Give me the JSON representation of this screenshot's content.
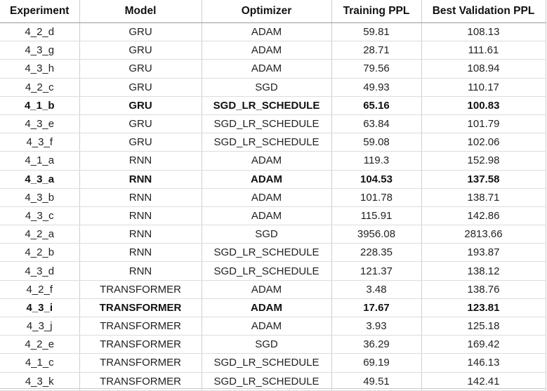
{
  "table": {
    "headers": [
      "Experiment",
      "Model",
      "Optimizer",
      "Training PPL",
      "Best Validation PPL"
    ],
    "rows": [
      {
        "cells": [
          "4_2_d",
          "GRU",
          "ADAM",
          "59.81",
          "108.13"
        ],
        "bold": false,
        "group_start": false
      },
      {
        "cells": [
          "4_3_g",
          "GRU",
          "ADAM",
          "28.71",
          "111.61"
        ],
        "bold": false,
        "group_start": false
      },
      {
        "cells": [
          "4_3_h",
          "GRU",
          "ADAM",
          "79.56",
          "108.94"
        ],
        "bold": false,
        "group_start": false
      },
      {
        "cells": [
          "4_2_c",
          "GRU",
          "SGD",
          "49.93",
          "110.17"
        ],
        "bold": false,
        "group_start": false
      },
      {
        "cells": [
          "4_1_b",
          "GRU",
          "SGD_LR_SCHEDULE",
          "65.16",
          "100.83"
        ],
        "bold": true,
        "group_start": false
      },
      {
        "cells": [
          "4_3_e",
          "GRU",
          "SGD_LR_SCHEDULE",
          "63.84",
          "101.79"
        ],
        "bold": false,
        "group_start": false
      },
      {
        "cells": [
          "4_3_f",
          "GRU",
          "SGD_LR_SCHEDULE",
          "59.08",
          "102.06"
        ],
        "bold": false,
        "group_start": false
      },
      {
        "cells": [
          "4_1_a",
          "RNN",
          "ADAM",
          "119.3",
          "152.98"
        ],
        "bold": false,
        "group_start": true
      },
      {
        "cells": [
          "4_3_a",
          "RNN",
          "ADAM",
          "104.53",
          "137.58"
        ],
        "bold": true,
        "group_start": false
      },
      {
        "cells": [
          "4_3_b",
          "RNN",
          "ADAM",
          "101.78",
          "138.71"
        ],
        "bold": false,
        "group_start": false
      },
      {
        "cells": [
          "4_3_c",
          "RNN",
          "ADAM",
          "115.91",
          "142.86"
        ],
        "bold": false,
        "group_start": false
      },
      {
        "cells": [
          "4_2_a",
          "RNN",
          "SGD",
          "3956.08",
          "2813.66"
        ],
        "bold": false,
        "group_start": false
      },
      {
        "cells": [
          "4_2_b",
          "RNN",
          "SGD_LR_SCHEDULE",
          "228.35",
          "193.87"
        ],
        "bold": false,
        "group_start": false
      },
      {
        "cells": [
          "4_3_d",
          "RNN",
          "SGD_LR_SCHEDULE",
          "121.37",
          "138.12"
        ],
        "bold": false,
        "group_start": false
      },
      {
        "cells": [
          "4_2_f",
          "TRANSFORMER",
          "ADAM",
          "3.48",
          "138.76"
        ],
        "bold": false,
        "group_start": true
      },
      {
        "cells": [
          "4_3_i",
          "TRANSFORMER",
          "ADAM",
          "17.67",
          "123.81"
        ],
        "bold": true,
        "group_start": false
      },
      {
        "cells": [
          "4_3_j",
          "TRANSFORMER",
          "ADAM",
          "3.93",
          "125.18"
        ],
        "bold": false,
        "group_start": false
      },
      {
        "cells": [
          "4_2_e",
          "TRANSFORMER",
          "SGD",
          "36.29",
          "169.42"
        ],
        "bold": false,
        "group_start": false
      },
      {
        "cells": [
          "4_1_c",
          "TRANSFORMER",
          "SGD_LR_SCHEDULE",
          "69.19",
          "146.13"
        ],
        "bold": false,
        "group_start": false
      },
      {
        "cells": [
          "4_3_k",
          "TRANSFORMER",
          "SGD_LR_SCHEDULE",
          "49.51",
          "142.41"
        ],
        "bold": false,
        "group_start": false
      }
    ]
  },
  "colors": {
    "text": "#222222",
    "grid_line": "#cfcfcf",
    "group_separator": "#222222",
    "background": "#ffffff"
  }
}
